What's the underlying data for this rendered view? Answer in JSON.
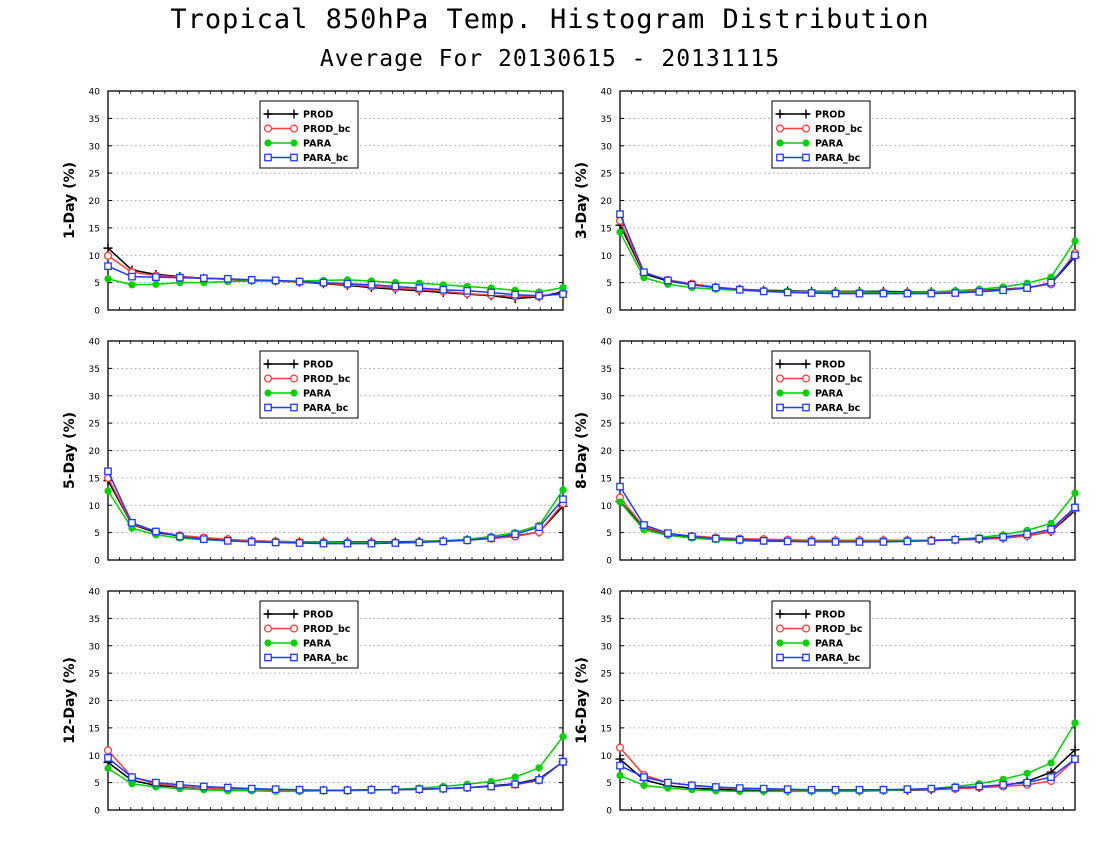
{
  "title": "Tropical 850hPa Temp. Histogram Distribution",
  "subtitle": "Average For 20130615 - 20131115",
  "colors": {
    "PROD": "#000000",
    "PROD_bc": "#ff3b3b",
    "PARA": "#00d000",
    "PARA_bc": "#1f3bff"
  },
  "legend": [
    {
      "name": "PROD",
      "marker": "plus"
    },
    {
      "name": "PROD_bc",
      "marker": "open-circle"
    },
    {
      "name": "PARA",
      "marker": "filled-circle"
    },
    {
      "name": "PARA_bc",
      "marker": "open-square"
    }
  ],
  "chart_data": [
    {
      "type": "line",
      "ylabel": "1-Day (%)",
      "ylim": [
        0,
        40
      ],
      "yticks": [
        0,
        5,
        10,
        15,
        20,
        25,
        30,
        35,
        40
      ],
      "grid": true,
      "legend_position": "top-center",
      "x": [
        1,
        2,
        3,
        4,
        5,
        6,
        7,
        8,
        9,
        10,
        11,
        12,
        13,
        14,
        15,
        16,
        17,
        18,
        19,
        20
      ],
      "series": [
        {
          "name": "PROD",
          "values": [
            11.3,
            7.3,
            6.5,
            6.1,
            5.8,
            5.6,
            5.4,
            5.3,
            5.1,
            4.8,
            4.5,
            4.1,
            3.8,
            3.5,
            3.2,
            2.9,
            2.6,
            2.1,
            2.4,
            3.3
          ]
        },
        {
          "name": "PROD_bc",
          "values": [
            9.9,
            6.9,
            6.3,
            6.0,
            5.8,
            5.6,
            5.5,
            5.3,
            5.1,
            4.9,
            4.6,
            4.3,
            4.0,
            3.7,
            3.4,
            3.0,
            2.7,
            2.5,
            2.5,
            3.0
          ]
        },
        {
          "name": "PARA",
          "values": [
            5.7,
            4.6,
            4.7,
            5.0,
            5.0,
            5.2,
            5.3,
            5.3,
            5.3,
            5.4,
            5.5,
            5.3,
            5.0,
            4.9,
            4.6,
            4.3,
            4.0,
            3.6,
            3.3,
            4.1
          ]
        },
        {
          "name": "PARA_bc",
          "values": [
            8.0,
            6.1,
            6.0,
            5.9,
            5.8,
            5.7,
            5.5,
            5.4,
            5.2,
            5.0,
            4.8,
            4.6,
            4.3,
            4.0,
            3.7,
            3.5,
            3.2,
            2.8,
            2.6,
            2.9
          ]
        }
      ]
    },
    {
      "type": "line",
      "ylabel": "3-Day (%)",
      "ylim": [
        0,
        40
      ],
      "yticks": [
        0,
        5,
        10,
        15,
        20,
        25,
        30,
        35,
        40
      ],
      "grid": true,
      "legend_position": "top-center",
      "x": [
        1,
        2,
        3,
        4,
        5,
        6,
        7,
        8,
        9,
        10,
        11,
        12,
        13,
        14,
        15,
        16,
        17,
        18,
        19,
        20
      ],
      "series": [
        {
          "name": "PROD",
          "values": [
            15.5,
            6.6,
            5.3,
            4.6,
            4.1,
            3.8,
            3.6,
            3.5,
            3.4,
            3.4,
            3.4,
            3.4,
            3.3,
            3.3,
            3.4,
            3.6,
            3.8,
            4.1,
            4.8,
            9.7
          ]
        },
        {
          "name": "PROD_bc",
          "values": [
            16.3,
            6.8,
            5.5,
            4.8,
            4.2,
            3.8,
            3.5,
            3.3,
            3.2,
            3.2,
            3.2,
            3.2,
            3.2,
            3.2,
            3.3,
            3.5,
            3.7,
            4.1,
            4.7,
            10.4
          ]
        },
        {
          "name": "PARA",
          "values": [
            14.2,
            5.9,
            4.7,
            4.1,
            3.8,
            3.6,
            3.4,
            3.4,
            3.3,
            3.3,
            3.3,
            3.2,
            3.2,
            3.3,
            3.5,
            3.8,
            4.2,
            4.9,
            6.0,
            12.6
          ]
        },
        {
          "name": "PARA_bc",
          "values": [
            17.5,
            6.9,
            5.4,
            4.6,
            4.1,
            3.7,
            3.4,
            3.2,
            3.1,
            3.0,
            3.0,
            3.0,
            3.0,
            3.0,
            3.1,
            3.3,
            3.6,
            4.0,
            5.0,
            10.0
          ]
        }
      ]
    },
    {
      "type": "line",
      "ylabel": "5-Day (%)",
      "ylim": [
        0,
        40
      ],
      "yticks": [
        0,
        5,
        10,
        15,
        20,
        25,
        30,
        35,
        40
      ],
      "grid": true,
      "legend_position": "top-center",
      "x": [
        1,
        2,
        3,
        4,
        5,
        6,
        7,
        8,
        9,
        10,
        11,
        12,
        13,
        14,
        15,
        16,
        17,
        18,
        19,
        20
      ],
      "series": [
        {
          "name": "PROD",
          "values": [
            14.5,
            6.5,
            5.0,
            4.4,
            4.0,
            3.7,
            3.5,
            3.4,
            3.3,
            3.3,
            3.3,
            3.3,
            3.3,
            3.4,
            3.5,
            3.7,
            4.0,
            4.4,
            5.1,
            9.8
          ]
        },
        {
          "name": "PROD_bc",
          "values": [
            15.0,
            6.6,
            5.2,
            4.5,
            4.1,
            3.8,
            3.5,
            3.4,
            3.3,
            3.3,
            3.2,
            3.2,
            3.2,
            3.3,
            3.4,
            3.6,
            3.9,
            4.3,
            5.1,
            10.3
          ]
        },
        {
          "name": "PARA",
          "values": [
            12.6,
            5.8,
            4.6,
            4.0,
            3.7,
            3.5,
            3.3,
            3.3,
            3.2,
            3.2,
            3.2,
            3.2,
            3.2,
            3.3,
            3.5,
            3.8,
            4.3,
            5.0,
            6.3,
            12.8
          ]
        },
        {
          "name": "PARA_bc",
          "values": [
            16.2,
            6.8,
            5.2,
            4.3,
            3.8,
            3.5,
            3.3,
            3.2,
            3.1,
            3.0,
            3.0,
            3.0,
            3.1,
            3.2,
            3.4,
            3.6,
            4.0,
            4.7,
            6.0,
            11.1
          ]
        }
      ]
    },
    {
      "type": "line",
      "ylabel": "8-Day (%)",
      "ylim": [
        0,
        40
      ],
      "yticks": [
        0,
        5,
        10,
        15,
        20,
        25,
        30,
        35,
        40
      ],
      "grid": true,
      "legend_position": "top-center",
      "x": [
        1,
        2,
        3,
        4,
        5,
        6,
        7,
        8,
        9,
        10,
        11,
        12,
        13,
        14,
        15,
        16,
        17,
        18,
        19,
        20
      ],
      "series": [
        {
          "name": "PROD",
          "values": [
            10.7,
            5.9,
            4.7,
            4.3,
            4.0,
            3.8,
            3.7,
            3.6,
            3.6,
            3.6,
            3.6,
            3.6,
            3.6,
            3.6,
            3.7,
            3.8,
            4.0,
            4.4,
            5.2,
            9.0
          ]
        },
        {
          "name": "PROD_bc",
          "values": [
            11.4,
            6.0,
            4.8,
            4.4,
            4.1,
            3.9,
            3.8,
            3.7,
            3.6,
            3.6,
            3.6,
            3.6,
            3.6,
            3.6,
            3.7,
            3.8,
            4.0,
            4.4,
            5.3,
            9.4
          ]
        },
        {
          "name": "PARA",
          "values": [
            10.6,
            5.5,
            4.5,
            4.0,
            3.7,
            3.5,
            3.4,
            3.4,
            3.4,
            3.4,
            3.4,
            3.4,
            3.5,
            3.6,
            3.8,
            4.1,
            4.6,
            5.4,
            6.7,
            12.2
          ]
        },
        {
          "name": "PARA_bc",
          "values": [
            13.4,
            6.4,
            4.9,
            4.3,
            3.9,
            3.7,
            3.5,
            3.4,
            3.3,
            3.3,
            3.3,
            3.3,
            3.4,
            3.5,
            3.7,
            3.9,
            4.2,
            4.7,
            5.6,
            9.6
          ]
        }
      ]
    },
    {
      "type": "line",
      "ylabel": "12-Day (%)",
      "ylim": [
        0,
        40
      ],
      "yticks": [
        0,
        5,
        10,
        15,
        20,
        25,
        30,
        35,
        40
      ],
      "grid": true,
      "legend_position": "top-center",
      "x": [
        1,
        2,
        3,
        4,
        5,
        6,
        7,
        8,
        9,
        10,
        11,
        12,
        13,
        14,
        15,
        16,
        17,
        18,
        19,
        20
      ],
      "series": [
        {
          "name": "PROD",
          "values": [
            8.7,
            5.4,
            4.5,
            4.2,
            4.0,
            3.8,
            3.7,
            3.7,
            3.6,
            3.6,
            3.6,
            3.7,
            3.7,
            3.8,
            3.9,
            4.1,
            4.4,
            4.8,
            5.7,
            8.8
          ]
        },
        {
          "name": "PROD_bc",
          "values": [
            10.9,
            6.0,
            4.8,
            4.3,
            4.0,
            3.8,
            3.7,
            3.6,
            3.6,
            3.6,
            3.6,
            3.7,
            3.7,
            3.8,
            3.9,
            4.1,
            4.3,
            4.6,
            5.4,
            8.9
          ]
        },
        {
          "name": "PARA",
          "values": [
            7.6,
            4.8,
            4.2,
            3.9,
            3.7,
            3.5,
            3.5,
            3.4,
            3.4,
            3.5,
            3.5,
            3.6,
            3.8,
            4.0,
            4.3,
            4.7,
            5.2,
            6.0,
            7.7,
            13.4
          ]
        },
        {
          "name": "PARA_bc",
          "values": [
            9.5,
            6.0,
            5.0,
            4.6,
            4.3,
            4.1,
            3.9,
            3.8,
            3.7,
            3.6,
            3.6,
            3.7,
            3.7,
            3.8,
            3.9,
            4.1,
            4.3,
            4.7,
            5.5,
            8.8
          ]
        }
      ]
    },
    {
      "type": "line",
      "ylabel": "16-Day (%)",
      "ylim": [
        0,
        40
      ],
      "yticks": [
        0,
        5,
        10,
        15,
        20,
        25,
        30,
        35,
        40
      ],
      "grid": true,
      "legend_position": "top-center",
      "x": [
        1,
        2,
        3,
        4,
        5,
        6,
        7,
        8,
        9,
        10,
        11,
        12,
        13,
        14,
        15,
        16,
        17,
        18,
        19,
        20
      ],
      "series": [
        {
          "name": "PROD",
          "values": [
            9.3,
            5.5,
            4.4,
            4.0,
            3.8,
            3.6,
            3.5,
            3.5,
            3.5,
            3.5,
            3.5,
            3.6,
            3.6,
            3.7,
            3.9,
            4.1,
            4.5,
            5.2,
            6.9,
            11.0
          ]
        },
        {
          "name": "PROD_bc",
          "values": [
            11.4,
            6.4,
            5.0,
            4.5,
            4.1,
            3.9,
            3.8,
            3.7,
            3.6,
            3.6,
            3.6,
            3.7,
            3.7,
            3.8,
            3.9,
            4.1,
            4.3,
            4.6,
            5.3,
            9.2
          ]
        },
        {
          "name": "PARA",
          "values": [
            6.3,
            4.5,
            4.0,
            3.7,
            3.5,
            3.4,
            3.4,
            3.4,
            3.4,
            3.4,
            3.4,
            3.5,
            3.7,
            3.9,
            4.3,
            4.8,
            5.6,
            6.7,
            8.6,
            15.9
          ]
        },
        {
          "name": "PARA_bc",
          "values": [
            8.1,
            6.0,
            5.0,
            4.5,
            4.2,
            4.0,
            3.9,
            3.8,
            3.7,
            3.7,
            3.7,
            3.7,
            3.8,
            3.9,
            4.1,
            4.3,
            4.6,
            5.0,
            6.0,
            9.3
          ]
        }
      ]
    }
  ]
}
